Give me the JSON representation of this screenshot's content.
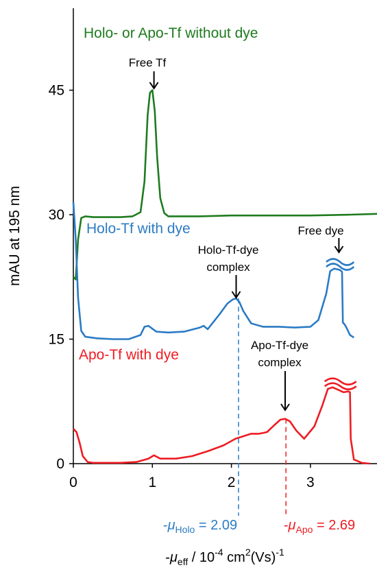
{
  "chart_data": {
    "type": "line",
    "ylabel": "mAU at 195 nm",
    "xlabel": {
      "pre": "-",
      "mu": "μ",
      "sub": "eff",
      "mid": " / 10",
      "sup1": "-4",
      "unit": " cm",
      "sup2": "2",
      "unit2": "(Vs)",
      "sup3": "-1"
    },
    "x_ticks": [
      "0",
      "1",
      "2",
      "3"
    ],
    "y_ticks": [
      "0",
      "15",
      "30",
      "45"
    ],
    "xlim": [
      0,
      3.85
    ],
    "ylim": [
      0,
      57
    ],
    "series": [
      {
        "name": "Holo- or Apo-Tf without dye",
        "color": "#1e7b1e",
        "x": [
          0.0,
          0.03,
          0.06,
          0.1,
          0.15,
          0.25,
          0.4,
          0.6,
          0.75,
          0.85,
          0.9,
          0.94,
          0.97,
          1.0,
          1.03,
          1.06,
          1.1,
          1.15,
          1.2,
          1.3,
          1.6,
          2.0,
          2.5,
          3.0,
          3.5,
          3.85
        ],
        "y": [
          22.5,
          22.2,
          27.0,
          29.6,
          29.8,
          29.7,
          29.7,
          29.7,
          29.8,
          30.3,
          34.0,
          42.0,
          44.7,
          45.0,
          42.5,
          37.0,
          32.0,
          30.2,
          29.8,
          29.8,
          29.8,
          29.9,
          29.9,
          29.9,
          30.0,
          30.1
        ]
      },
      {
        "name": "Holo-Tf with dye",
        "color": "#2b7bc4",
        "x": [
          0.0,
          0.03,
          0.06,
          0.1,
          0.15,
          0.3,
          0.5,
          0.7,
          0.85,
          0.9,
          0.95,
          1.05,
          1.2,
          1.4,
          1.6,
          1.65,
          1.7,
          1.75,
          1.85,
          1.95,
          2.02,
          2.06,
          2.1,
          2.15,
          2.25,
          2.4,
          2.6,
          2.8,
          3.0,
          3.1,
          3.2,
          3.25,
          3.3,
          3.35,
          3.38,
          3.4,
          3.41,
          3.43,
          3.45,
          3.5,
          3.55
        ],
        "y": [
          31.5,
          27.0,
          20.0,
          16.0,
          15.3,
          15.1,
          15.0,
          15.0,
          15.5,
          16.5,
          16.6,
          15.9,
          15.8,
          15.9,
          16.4,
          16.6,
          16.2,
          16.8,
          18.0,
          19.3,
          19.8,
          19.9,
          19.5,
          18.4,
          16.9,
          16.5,
          16.5,
          16.4,
          16.5,
          17.3,
          20.5,
          23.2,
          23.5,
          23.4,
          23.3,
          23.1,
          17.0,
          16.8,
          16.5,
          15.5,
          15.2
        ]
      },
      {
        "name": "Apo-Tf with dye",
        "color": "#ee1c23",
        "x": [
          0.0,
          0.04,
          0.08,
          0.12,
          0.18,
          0.25,
          0.4,
          0.6,
          0.8,
          0.95,
          1.02,
          1.1,
          1.3,
          1.5,
          1.7,
          1.9,
          2.05,
          2.15,
          2.25,
          2.35,
          2.45,
          2.55,
          2.62,
          2.68,
          2.74,
          2.82,
          2.92,
          3.05,
          3.15,
          3.22,
          3.28,
          3.35,
          3.42,
          3.48,
          3.5,
          3.51,
          3.55,
          3.65,
          3.75
        ],
        "y": [
          4.2,
          3.8,
          2.5,
          0.9,
          0.2,
          0.1,
          0.1,
          0.1,
          0.2,
          0.6,
          1.0,
          0.6,
          0.6,
          0.9,
          1.5,
          2.2,
          3.0,
          3.3,
          3.6,
          3.6,
          3.8,
          4.7,
          5.3,
          5.4,
          5.1,
          4.0,
          3.0,
          4.5,
          7.0,
          9.0,
          9.2,
          8.9,
          8.6,
          8.7,
          8.6,
          3.0,
          0.5,
          0.1,
          0.0
        ]
      }
    ],
    "series_labels": [
      {
        "text": "Holo- or Apo-Tf without dye",
        "color": "#1e7b1e"
      },
      {
        "text": "Holo-Tf with dye",
        "color": "#2b7bc4"
      },
      {
        "text": "Apo-Tf with dye",
        "color": "#ee1c23"
      }
    ],
    "annotations": {
      "free_tf": "Free Tf",
      "free_dye": "Free dye",
      "holo_complex_1": "Holo-Tf-dye",
      "holo_complex_2": "complex",
      "apo_complex_1": "Apo-Tf-dye",
      "apo_complex_2": "complex"
    },
    "marker_holo": {
      "pre": "-",
      "mu": "μ",
      "sub": "Holo",
      "eq": " = ",
      "value": 2.09,
      "label_value": "2.09",
      "color": "#2b7bc4"
    },
    "marker_apo": {
      "pre": "-",
      "mu": "μ",
      "sub": "Apo",
      "eq": " = ",
      "value": 2.69,
      "label_value": "2.69",
      "color": "#ee1c23"
    },
    "grid": false
  }
}
